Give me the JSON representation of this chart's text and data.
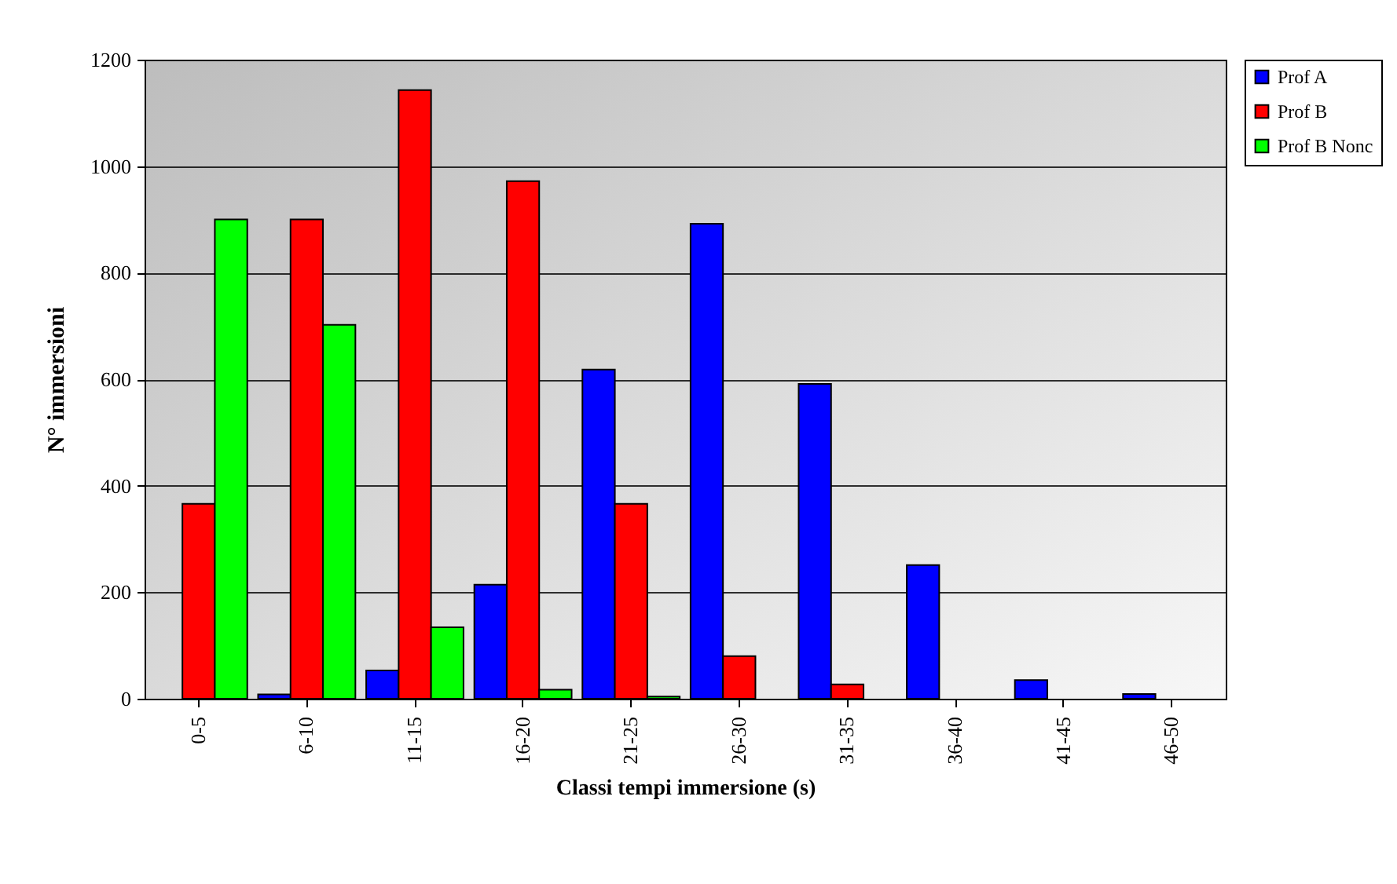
{
  "chart_data": {
    "type": "bar",
    "xlabel": "Classi tempi immersione (s)",
    "ylabel": "N° immersioni",
    "categories": [
      "0-5",
      "6-10",
      "11-15",
      "16-20",
      "21-25",
      "26-30",
      "31-35",
      "36-40",
      "41-45",
      "46-50"
    ],
    "series": [
      {
        "name": "Prof A",
        "color": "#0000ff",
        "values": [
          null,
          8,
          53,
          214,
          618,
          892,
          591,
          251,
          35,
          9
        ]
      },
      {
        "name": "Prof B",
        "color": "#ff0000",
        "values": [
          366,
          900,
          1143,
          972,
          366,
          80,
          27,
          null,
          null,
          null
        ]
      },
      {
        "name": "Prof B Nonc",
        "color": "#00ff00",
        "values": [
          900,
          702,
          134,
          17,
          4,
          null,
          null,
          null,
          null,
          null
        ]
      }
    ],
    "ylim": [
      0,
      1200
    ],
    "yticks": [
      0,
      200,
      400,
      600,
      800,
      1000,
      1200
    ],
    "grid": "y",
    "legend": "right"
  }
}
